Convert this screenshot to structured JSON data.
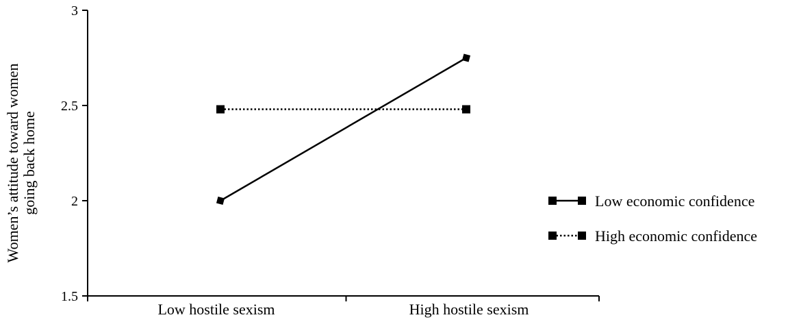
{
  "chart_data": {
    "type": "line",
    "title": "",
    "categories": [
      "Low hostile sexism",
      "High hostile sexism"
    ],
    "ylabel_lines": [
      "Women’s attitude toward women",
      "going back home"
    ],
    "xlabel": "",
    "ylim": [
      1.5,
      3
    ],
    "yticks": [
      1.5,
      2,
      2.5,
      3
    ],
    "ytick_labels": [
      "1.5",
      "2",
      "2.5",
      "3"
    ],
    "grid": false,
    "legend_position": "right",
    "series": [
      {
        "name": "Low economic confidence",
        "values": [
          2.0,
          2.75
        ],
        "line_style": "solid",
        "marker": "diamond",
        "color": "#000000"
      },
      {
        "name": "High economic confidence",
        "values": [
          2.48,
          2.48
        ],
        "line_style": "dotted",
        "marker": "square",
        "color": "#000000"
      }
    ]
  }
}
